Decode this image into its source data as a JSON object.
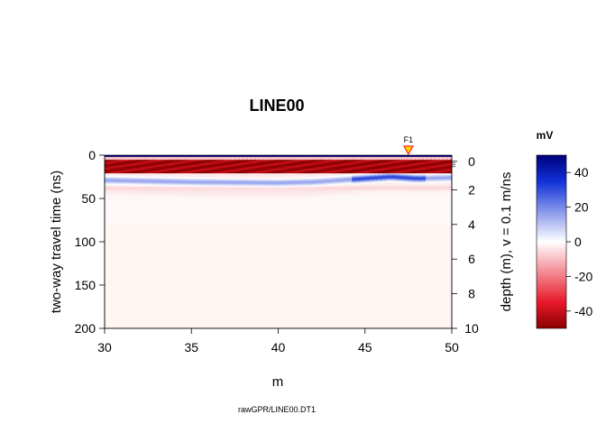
{
  "chart_data": {
    "type": "heatmap",
    "title": "LINE00",
    "xlabel": "m",
    "ylabel_left": "two-way travel time (ns)",
    "ylabel_right": "depth (m),   v = 0.1 m/ns",
    "caption": "rawGPR/LINE00.DT1",
    "x_range": [
      30,
      50
    ],
    "x_ticks": [
      "30",
      "35",
      "40",
      "45",
      "50"
    ],
    "time_range": [
      0,
      200
    ],
    "y_ticks_left": [
      "0",
      "50",
      "100",
      "150",
      "200"
    ],
    "depth_ticks_right": [
      "0",
      "2",
      "4",
      "6",
      "8",
      "10"
    ],
    "velocity_m_per_ns": 0.1,
    "colorbar": {
      "unit": "mV",
      "range": [
        -50,
        50
      ],
      "ticks": [
        "40",
        "20",
        "0",
        "-20",
        "-40"
      ],
      "low_color": "#8b0000",
      "mid_color": "#ffffff",
      "high_color": "#00007a"
    },
    "fiducial": {
      "label": "F1",
      "position_m": 47.5,
      "color": "#ffd700"
    },
    "reflectors": [
      {
        "description": "direct air wave",
        "time_ns": [
          0,
          2
        ],
        "amplitude_mV": 50
      },
      {
        "description": "ground wave",
        "time_ns": [
          6,
          20
        ],
        "amplitude_mV": -48
      },
      {
        "description": "first reflector",
        "x_m": [
          30,
          35,
          40,
          42,
          45,
          46.5,
          48,
          50
        ],
        "time_ns": [
          29,
          31,
          32,
          31,
          27,
          25,
          27,
          26
        ],
        "amplitude_mV": 18
      }
    ]
  }
}
